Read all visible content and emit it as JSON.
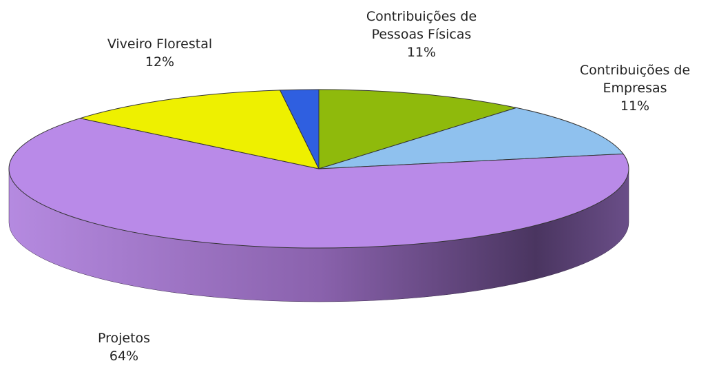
{
  "chart_data": {
    "type": "pie",
    "categories": [
      "Contribuições de Pessoas Físicas",
      "Contribuições de Empresas",
      "Projetos",
      "Viveiro Florestal",
      null
    ],
    "values": [
      11,
      11,
      64,
      12,
      2
    ],
    "value_labels": [
      "11%",
      "11%",
      "64%",
      "12%",
      null
    ],
    "colors": [
      "#8fba0c",
      "#8fc1ee",
      "#b98ae8",
      "#eef000",
      "#2f5fe0"
    ],
    "side_colors": [
      "#5d7a05",
      "#3e6f8c",
      "#6e4a8e",
      "#9a9b00",
      "#1a3a90"
    ]
  }
}
